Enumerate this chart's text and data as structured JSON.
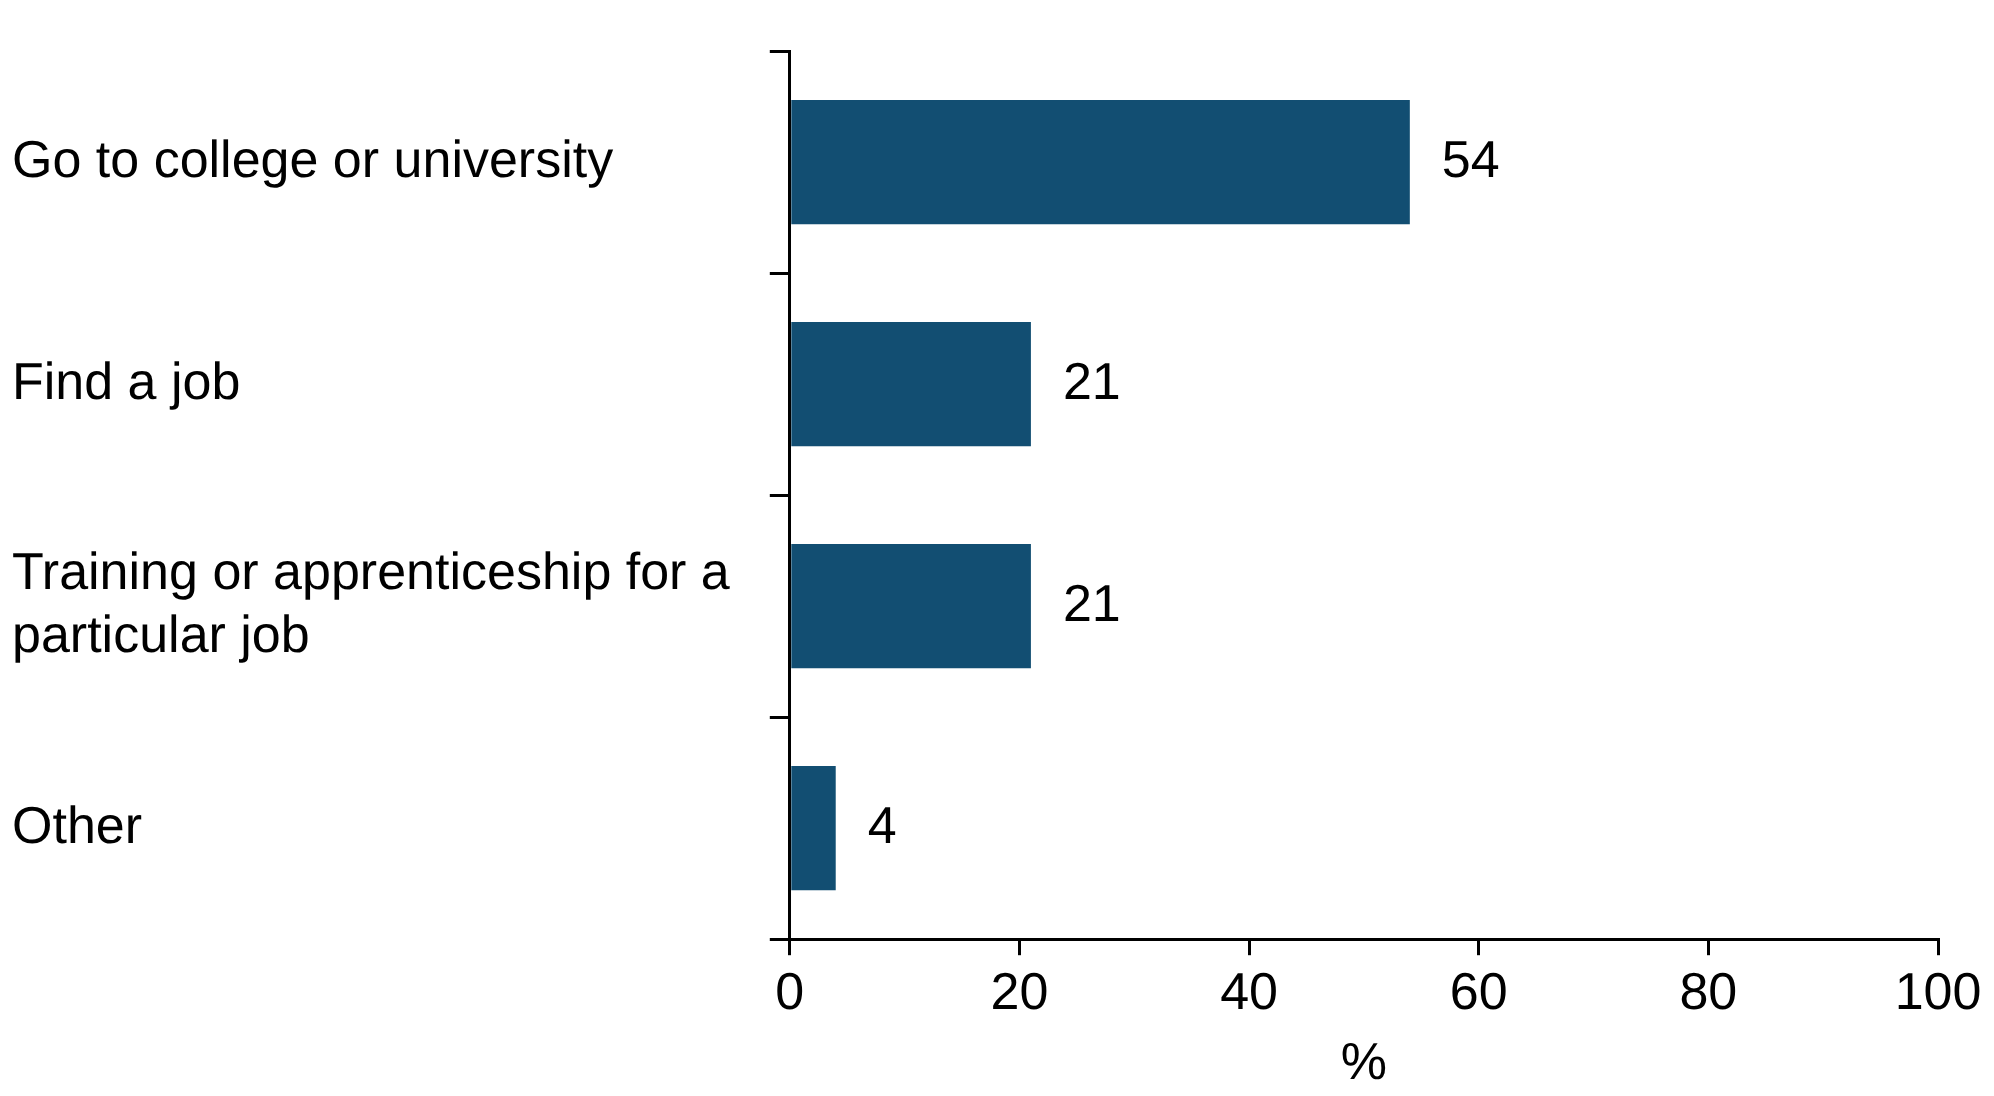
{
  "chart_data": {
    "type": "bar",
    "orientation": "horizontal",
    "categories": [
      "Go to college or university",
      "Find a job",
      "Training or apprenticeship for a particular job",
      "Other"
    ],
    "values": [
      54,
      21,
      21,
      4
    ],
    "color": "#124e72",
    "xlim": [
      0,
      100
    ],
    "xticks": [
      0,
      20,
      40,
      60,
      80,
      100
    ],
    "xlabel": "%",
    "data_labels": true,
    "grid": false,
    "legend": false
  }
}
